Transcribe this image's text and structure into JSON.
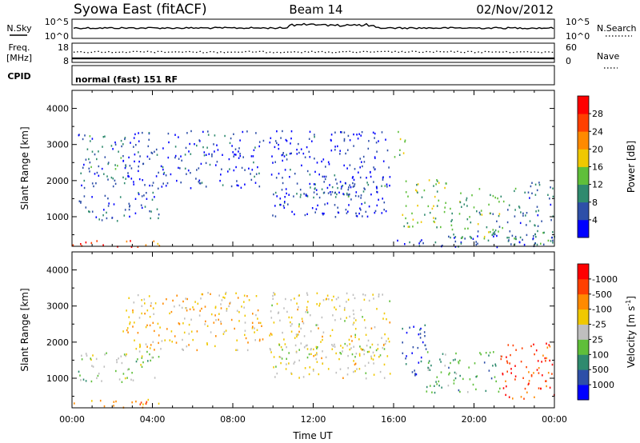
{
  "header": {
    "station": "Syowa East (fitACF)",
    "beam": "Beam 14",
    "date": "02/Nov/2012"
  },
  "summary_panels": {
    "nsky": {
      "left_label": "N.Sky",
      "right_label": "N.Search",
      "left_ticks": [
        "10^5",
        "10^0"
      ],
      "right_ticks": [
        "10^5",
        "10^0"
      ]
    },
    "freq": {
      "left_label_1": "Freq.",
      "left_label_2": "[MHz]",
      "left_ticks": [
        "18",
        "8"
      ],
      "right_label": "Nave",
      "right_ticks": [
        "60",
        "0"
      ]
    },
    "cpid": {
      "label": "CPID",
      "mode": "normal (fast) 151 RF"
    }
  },
  "chart_data": [
    {
      "type": "heatmap",
      "ylabel": "Slant Range [km]",
      "xlabel": "",
      "x_range_hours": [
        0,
        24
      ],
      "ylim": [
        180,
        4500
      ],
      "y_ticks": [
        1000,
        2000,
        3000,
        4000
      ],
      "x_tick_labels": [
        "00:00",
        "04:00",
        "08:00",
        "12:00",
        "16:00",
        "20:00",
        "00:00"
      ],
      "colorbar": {
        "label": "Power [dB]",
        "tick_labels": [
          "4",
          "8",
          "12",
          "16",
          "20",
          "24",
          "28"
        ],
        "colors": [
          "#0000ff",
          "#2e4fa8",
          "#2f8a6e",
          "#5fbf3a",
          "#f0c800",
          "#ff8a00",
          "#ff4000",
          "#ff0000"
        ]
      },
      "regions": [
        {
          "x": [
            0.0,
            3.2
          ],
          "r": [
            180,
            400
          ],
          "level": 6.5
        },
        {
          "x": [
            3.2,
            4.6
          ],
          "r": [
            180,
            400
          ],
          "level": 5.5
        },
        {
          "x": [
            0.3,
            4.3
          ],
          "r": [
            900,
            1700
          ],
          "level": 1.0
        },
        {
          "x": [
            0.3,
            2.8
          ],
          "r": [
            1700,
            3300
          ],
          "level": 1.5
        },
        {
          "x": [
            2.5,
            9.5
          ],
          "r": [
            1800,
            3400
          ],
          "level": 0.6
        },
        {
          "x": [
            10.0,
            14.5
          ],
          "r": [
            1550,
            1950
          ],
          "level": 1.5
        },
        {
          "x": [
            12.5,
            15.8
          ],
          "r": [
            1600,
            2000
          ],
          "level": 1.5
        },
        {
          "x": [
            9.8,
            15.8
          ],
          "r": [
            1000,
            3400
          ],
          "level": 0.4
        },
        {
          "x": [
            16.0,
            16.6
          ],
          "r": [
            2600,
            3400
          ],
          "level": 3.5
        },
        {
          "x": [
            16.4,
            18.6
          ],
          "r": [
            700,
            2100
          ],
          "level": 3.0
        },
        {
          "x": [
            18.6,
            21.3
          ],
          "r": [
            400,
            1800
          ],
          "level": 2.5
        },
        {
          "x": [
            21.3,
            24.0
          ],
          "r": [
            200,
            2000
          ],
          "level": 1.5
        },
        {
          "x": [
            16.0,
            24.0
          ],
          "r": [
            180,
            500
          ],
          "level": 1.0
        }
      ]
    },
    {
      "type": "heatmap",
      "ylabel": "Slant Range [km]",
      "xlabel": "Time UT",
      "x_range_hours": [
        0,
        24
      ],
      "ylim": [
        180,
        4500
      ],
      "y_ticks": [
        1000,
        2000,
        3000,
        4000
      ],
      "x_tick_labels": [
        "00:00",
        "04:00",
        "08:00",
        "12:00",
        "16:00",
        "20:00",
        "00:00"
      ],
      "colorbar": {
        "label": "Velocity [m s^-1]",
        "tick_labels": [
          "1000",
          "500",
          "100",
          "25",
          "-25",
          "-100",
          "-500",
          "-1000"
        ],
        "colors": [
          "#0000ff",
          "#2e4fa8",
          "#2f8a6e",
          "#5fbf3a",
          "#bfbfbf",
          "#f0c800",
          "#ff8a00",
          "#ff4000",
          "#ff0000"
        ]
      },
      "regions": [
        {
          "x": [
            0.0,
            4.6
          ],
          "r": [
            200,
            450
          ],
          "level": 6.0
        },
        {
          "x": [
            0.3,
            4.3
          ],
          "r": [
            900,
            1800
          ],
          "level": 3.5
        },
        {
          "x": [
            2.5,
            9.5
          ],
          "r": [
            1800,
            3400
          ],
          "level": 5.0
        },
        {
          "x": [
            10.0,
            15.8
          ],
          "r": [
            1550,
            2000
          ],
          "level": 4.0
        },
        {
          "x": [
            9.8,
            15.8
          ],
          "r": [
            1000,
            3400
          ],
          "level": 4.5
        },
        {
          "x": [
            16.3,
            17.6
          ],
          "r": [
            1000,
            2500
          ],
          "level": 0.8
        },
        {
          "x": [
            17.6,
            21.3
          ],
          "r": [
            600,
            1800
          ],
          "level": 2.5
        },
        {
          "x": [
            21.3,
            24.0
          ],
          "r": [
            400,
            2000
          ],
          "level": 7.0
        }
      ]
    }
  ]
}
